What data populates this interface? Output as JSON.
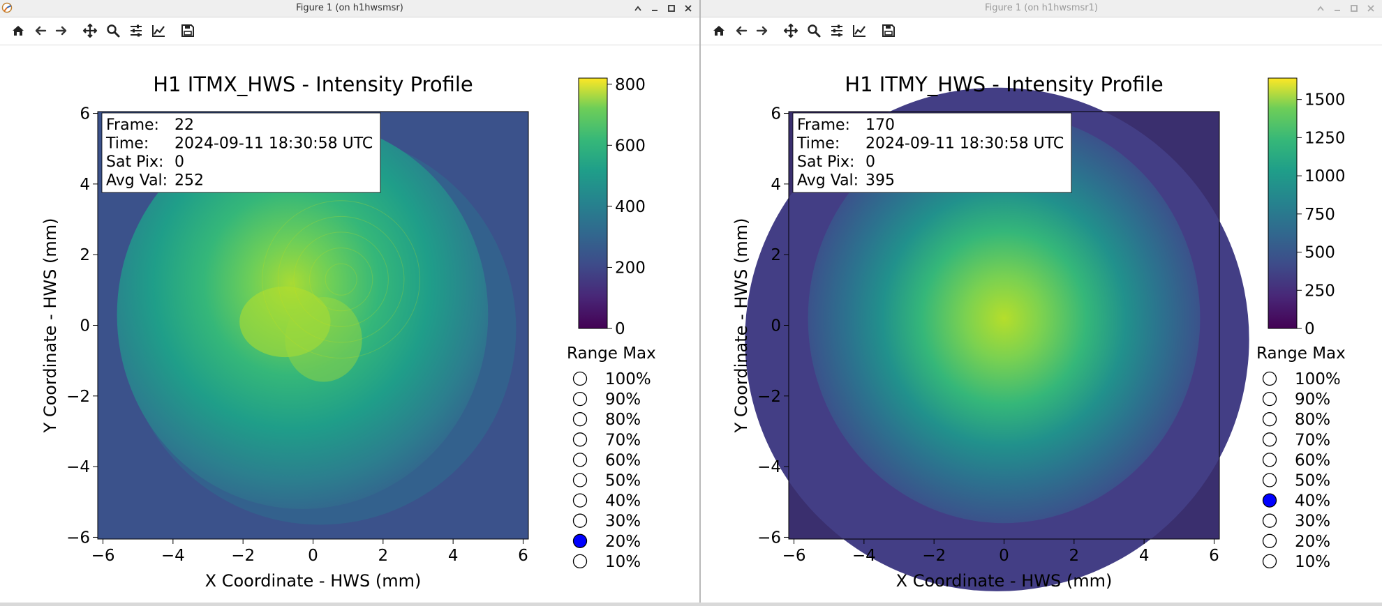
{
  "windows": [
    {
      "id": "left",
      "window_title": "Figure 1 (on h1hwsmsr)",
      "title_active": true,
      "plot": {
        "title": "H1 ITMX_HWS - Intensity Profile",
        "xlabel": "X Coordinate - HWS (mm)",
        "ylabel": "Y Coordinate - HWS (mm)",
        "xticks": [
          "−6",
          "−4",
          "−2",
          "0",
          "2",
          "4",
          "6"
        ],
        "yticks": [
          "6",
          "4",
          "2",
          "0",
          "−2",
          "−4",
          "−6"
        ],
        "info": {
          "frame_label": "Frame:",
          "frame_value": "22",
          "time_label": "Time:",
          "time_value": "2024-09-11 18:30:58 UTC",
          "sat_label": "Sat Pix:",
          "sat_value": "0",
          "avg_label": "Avg Val:",
          "avg_value": "252"
        },
        "colorbar": {
          "ticks": [
            "800",
            "600",
            "400",
            "200",
            "0"
          ],
          "max": 820
        },
        "range_title": "Range Max",
        "range_options": [
          "100%",
          "90%",
          "80%",
          "70%",
          "60%",
          "50%",
          "40%",
          "30%",
          "20%",
          "10%"
        ],
        "range_selected": "20%"
      }
    },
    {
      "id": "right",
      "window_title": "Figure 1 (on h1hwsmsr1)",
      "title_active": false,
      "plot": {
        "title": "H1 ITMY_HWS - Intensity Profile",
        "xlabel": "X Coordinate - HWS (mm)",
        "ylabel": "Y Coordinate - HWS (mm)",
        "xticks": [
          "−6",
          "−4",
          "−2",
          "0",
          "2",
          "4",
          "6"
        ],
        "yticks": [
          "6",
          "4",
          "2",
          "0",
          "−2",
          "−4",
          "−6"
        ],
        "info": {
          "frame_label": "Frame:",
          "frame_value": "170",
          "time_label": "Time:",
          "time_value": "2024-09-11 18:30:58 UTC",
          "sat_label": "Sat Pix:",
          "sat_value": "0",
          "avg_label": "Avg Val:",
          "avg_value": "395"
        },
        "colorbar": {
          "ticks": [
            "1500",
            "1250",
            "1000",
            "750",
            "500",
            "250",
            "0"
          ],
          "max": 1640
        },
        "range_title": "Range Max",
        "range_options": [
          "100%",
          "90%",
          "80%",
          "70%",
          "60%",
          "50%",
          "40%",
          "30%",
          "20%",
          "10%"
        ],
        "range_selected": "40%"
      }
    }
  ],
  "toolbar_icons": [
    "home-icon",
    "back-icon",
    "forward-icon",
    "pan-icon",
    "zoom-icon",
    "configure-subplots-icon",
    "edit-axis-icon",
    "save-icon"
  ],
  "colors": {
    "selected_radio": "#0000ff",
    "titlebar": "#efefef"
  }
}
